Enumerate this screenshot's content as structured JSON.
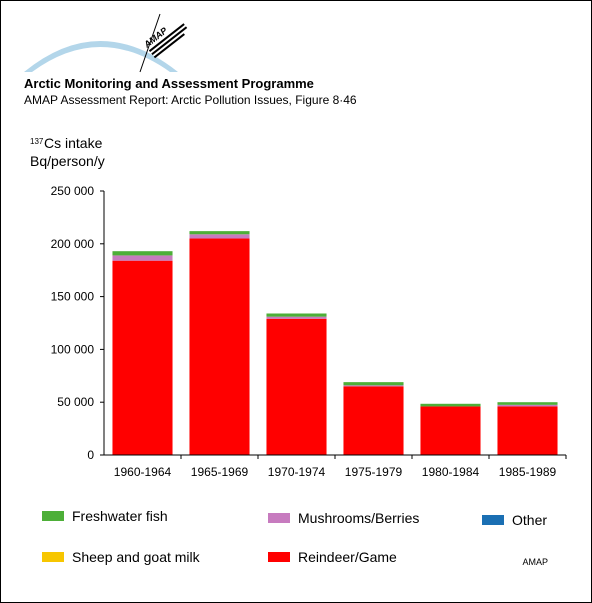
{
  "header": {
    "title": "Arctic Monitoring and Assessment Programme",
    "subtitle": "AMAP Assessment Report: Arctic Pollution Issues, Figure 8·46"
  },
  "logo": {
    "wordmark": "AMAP"
  },
  "credit": "AMAP",
  "colors": {
    "freshwater_fish": "#4daf38",
    "mushrooms_berries": "#c77bbf",
    "other": "#1a6fb3",
    "sheep_goat_milk": "#f7c600",
    "reindeer_game": "#ff0000",
    "logo_arc": "#b3d6ea"
  },
  "chart_data": {
    "type": "bar",
    "stacked": true,
    "ylabel_sup": "137",
    "ylabel_line1": "Cs intake",
    "ylabel_line2": "Bq/person/y",
    "ylim": [
      0,
      250000
    ],
    "yticks": [
      0,
      50000,
      100000,
      150000,
      200000,
      250000
    ],
    "ytick_labels": [
      "0",
      "50 000",
      "100 000",
      "150 000",
      "200 000",
      "250 000"
    ],
    "categories": [
      "1960-1964",
      "1965-1969",
      "1970-1974",
      "1975-1979",
      "1980-1984",
      "1985-1989"
    ],
    "series": [
      {
        "name": "Reindeer/Game",
        "color_key": "reindeer_game",
        "values": [
          184000,
          205000,
          129000,
          65000,
          46000,
          46000
        ]
      },
      {
        "name": "Sheep and goat milk",
        "color_key": "sheep_goat_milk",
        "values": [
          0,
          0,
          0,
          0,
          0,
          0
        ]
      },
      {
        "name": "Other",
        "color_key": "other",
        "values": [
          0,
          0,
          0,
          0,
          0,
          0
        ]
      },
      {
        "name": "Mushrooms/Berries",
        "color_key": "mushrooms_berries",
        "values": [
          5000,
          4000,
          2000,
          1000,
          0,
          1500
        ]
      },
      {
        "name": "Freshwater fish",
        "color_key": "freshwater_fish",
        "values": [
          4000,
          3000,
          3000,
          3000,
          2500,
          2500
        ]
      }
    ],
    "legend": [
      {
        "name": "Freshwater fish",
        "color_key": "freshwater_fish"
      },
      {
        "name": "Mushrooms/Berries",
        "color_key": "mushrooms_berries"
      },
      {
        "name": "Other",
        "color_key": "other"
      },
      {
        "name": "Sheep and goat milk",
        "color_key": "sheep_goat_milk"
      },
      {
        "name": "Reindeer/Game",
        "color_key": "reindeer_game"
      }
    ],
    "legend_position": "bottom",
    "grid": false
  }
}
